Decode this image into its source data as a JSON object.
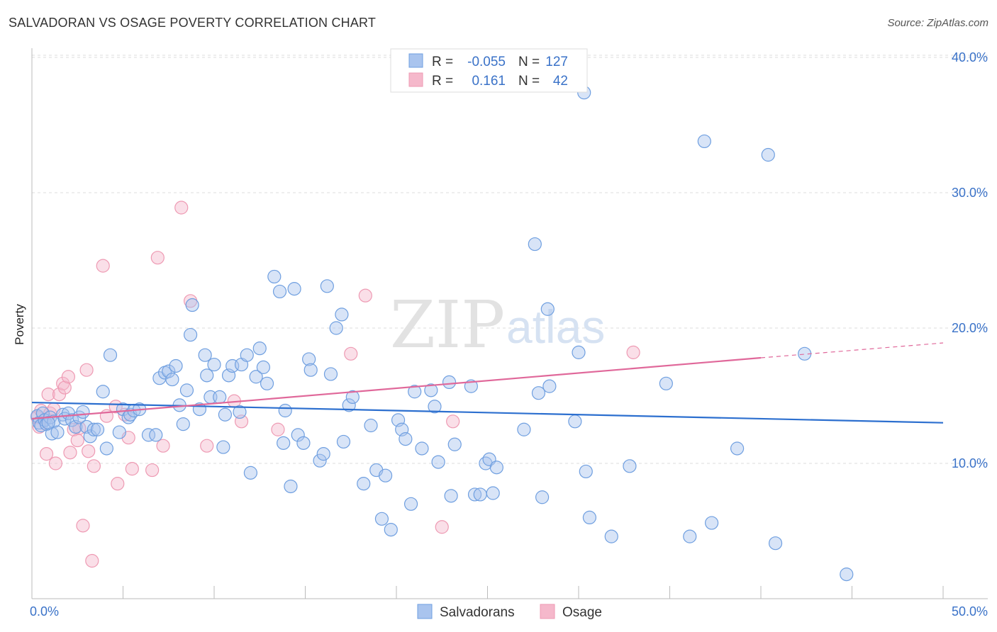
{
  "title": "SALVADORAN VS OSAGE POVERTY CORRELATION CHART",
  "source": "Source: ZipAtlas.com",
  "watermark": {
    "zip": "ZIP",
    "atlas": "atlas"
  },
  "legend_box": {
    "rows": [
      {
        "r_label": "R =",
        "r_value": "-0.055",
        "n_label": "N =",
        "n_value": "127",
        "color": "#a9c4ee"
      },
      {
        "r_label": "R =",
        "r_value": "0.161",
        "n_label": "N =",
        "n_value": "42",
        "color": "#f5b8cb"
      }
    ]
  },
  "bottom_legend": [
    {
      "label": "Salvadorans",
      "color": "#a9c4ee"
    },
    {
      "label": "Osage",
      "color": "#f5b8cb"
    }
  ],
  "chart_data": {
    "type": "scatter",
    "title": "SALVADORAN VS OSAGE POVERTY CORRELATION CHART",
    "xlabel": "",
    "ylabel": "Poverty",
    "xlim": [
      0,
      50
    ],
    "ylim": [
      0,
      41
    ],
    "x_tick_labels": [
      "0.0%",
      "50.0%"
    ],
    "y_ticks": [
      10,
      20,
      30,
      40
    ],
    "y_tick_labels": [
      "10.0%",
      "20.0%",
      "30.0%",
      "40.0%"
    ],
    "grid": "horizontal dashed",
    "legend": "top-center",
    "series": [
      {
        "name": "Salvadorans",
        "color": "#6f9fe0",
        "fill": "#a9c4ee",
        "trend": {
          "x": [
            0,
            50
          ],
          "y": [
            14.5,
            13.0
          ],
          "color": "#2c6fcf"
        },
        "points": [
          [
            0.3,
            13.5
          ],
          [
            0.4,
            13.0
          ],
          [
            0.5,
            12.8
          ],
          [
            0.6,
            13.7
          ],
          [
            0.7,
            13.2
          ],
          [
            0.8,
            12.9
          ],
          [
            1.0,
            13.4
          ],
          [
            1.1,
            12.2
          ],
          [
            1.2,
            13.1
          ],
          [
            1.4,
            12.3
          ],
          [
            1.7,
            13.6
          ],
          [
            1.8,
            13.3
          ],
          [
            2.0,
            13.7
          ],
          [
            2.2,
            13.2
          ],
          [
            2.4,
            12.7
          ],
          [
            2.6,
            13.4
          ],
          [
            2.8,
            13.8
          ],
          [
            3.0,
            12.7
          ],
          [
            3.2,
            12.0
          ],
          [
            3.4,
            12.5
          ],
          [
            3.6,
            12.5
          ],
          [
            3.9,
            15.3
          ],
          [
            4.1,
            11.1
          ],
          [
            4.3,
            18.0
          ],
          [
            4.8,
            12.3
          ],
          [
            5.0,
            14.0
          ],
          [
            5.3,
            13.4
          ],
          [
            5.4,
            13.6
          ],
          [
            5.6,
            13.9
          ],
          [
            5.9,
            14.0
          ],
          [
            6.4,
            12.1
          ],
          [
            6.8,
            12.1
          ],
          [
            7.0,
            16.3
          ],
          [
            7.3,
            16.7
          ],
          [
            7.5,
            16.8
          ],
          [
            7.7,
            16.2
          ],
          [
            7.9,
            17.2
          ],
          [
            8.1,
            14.3
          ],
          [
            8.3,
            12.9
          ],
          [
            8.5,
            15.4
          ],
          [
            8.7,
            19.5
          ],
          [
            8.8,
            21.7
          ],
          [
            9.2,
            14.0
          ],
          [
            9.5,
            18.0
          ],
          [
            9.6,
            16.5
          ],
          [
            9.8,
            14.9
          ],
          [
            10.0,
            17.3
          ],
          [
            10.3,
            14.9
          ],
          [
            10.5,
            11.2
          ],
          [
            10.6,
            13.6
          ],
          [
            10.8,
            16.5
          ],
          [
            11.0,
            17.2
          ],
          [
            11.4,
            13.8
          ],
          [
            11.5,
            17.3
          ],
          [
            11.8,
            18.0
          ],
          [
            12.0,
            9.3
          ],
          [
            12.3,
            16.4
          ],
          [
            12.5,
            18.5
          ],
          [
            12.7,
            17.1
          ],
          [
            12.9,
            15.9
          ],
          [
            13.3,
            23.8
          ],
          [
            13.6,
            22.7
          ],
          [
            13.8,
            11.5
          ],
          [
            13.9,
            13.9
          ],
          [
            14.2,
            8.3
          ],
          [
            14.4,
            22.9
          ],
          [
            14.6,
            12.1
          ],
          [
            14.9,
            11.5
          ],
          [
            15.2,
            17.7
          ],
          [
            15.3,
            16.9
          ],
          [
            15.8,
            10.2
          ],
          [
            16.0,
            10.7
          ],
          [
            16.2,
            23.1
          ],
          [
            16.4,
            16.6
          ],
          [
            16.7,
            20.0
          ],
          [
            17.0,
            21.0
          ],
          [
            17.1,
            11.6
          ],
          [
            17.4,
            14.3
          ],
          [
            17.6,
            14.9
          ],
          [
            18.2,
            8.5
          ],
          [
            18.6,
            12.8
          ],
          [
            18.9,
            9.5
          ],
          [
            19.2,
            5.9
          ],
          [
            19.4,
            9.1
          ],
          [
            19.7,
            5.1
          ],
          [
            20.1,
            13.2
          ],
          [
            20.3,
            12.5
          ],
          [
            20.5,
            11.8
          ],
          [
            20.8,
            7.0
          ],
          [
            21.0,
            15.3
          ],
          [
            21.4,
            11.1
          ],
          [
            21.9,
            15.4
          ],
          [
            22.1,
            14.2
          ],
          [
            22.3,
            10.1
          ],
          [
            22.9,
            16.0
          ],
          [
            23.0,
            7.6
          ],
          [
            23.2,
            11.4
          ],
          [
            24.1,
            15.7
          ],
          [
            24.3,
            7.7
          ],
          [
            24.6,
            7.7
          ],
          [
            24.9,
            10.0
          ],
          [
            25.1,
            10.3
          ],
          [
            25.3,
            7.8
          ],
          [
            25.5,
            9.7
          ],
          [
            27.0,
            12.5
          ],
          [
            27.6,
            26.2
          ],
          [
            27.8,
            15.2
          ],
          [
            28.0,
            7.5
          ],
          [
            28.3,
            21.4
          ],
          [
            28.4,
            15.7
          ],
          [
            29.8,
            13.1
          ],
          [
            30.0,
            18.2
          ],
          [
            30.4,
            9.4
          ],
          [
            30.6,
            6.0
          ],
          [
            31.8,
            4.6
          ],
          [
            32.8,
            9.8
          ],
          [
            34.8,
            15.9
          ],
          [
            36.1,
            4.6
          ],
          [
            36.9,
            33.8
          ],
          [
            37.3,
            5.6
          ],
          [
            38.7,
            11.1
          ],
          [
            40.4,
            32.8
          ],
          [
            40.8,
            4.1
          ],
          [
            42.4,
            18.1
          ],
          [
            44.7,
            1.8
          ],
          [
            30.3,
            37.4
          ],
          [
            0.9,
            13.0
          ]
        ]
      },
      {
        "name": "Osage",
        "color": "#ee9ab3",
        "fill": "#f5b8cb",
        "trend": {
          "x": [
            0,
            40
          ],
          "y": [
            13.3,
            17.8
          ],
          "dash_x": [
            40,
            50
          ],
          "dash_y": [
            17.8,
            18.9
          ],
          "color": "#e0689a"
        },
        "points": [
          [
            0.3,
            13.4
          ],
          [
            0.4,
            12.7
          ],
          [
            0.5,
            13.9
          ],
          [
            0.8,
            10.7
          ],
          [
            0.9,
            15.1
          ],
          [
            1.0,
            13.7
          ],
          [
            1.2,
            14.0
          ],
          [
            1.3,
            10.0
          ],
          [
            1.5,
            15.1
          ],
          [
            1.7,
            15.9
          ],
          [
            1.8,
            15.6
          ],
          [
            2.0,
            16.4
          ],
          [
            2.1,
            10.8
          ],
          [
            2.3,
            12.5
          ],
          [
            2.5,
            11.7
          ],
          [
            2.6,
            12.6
          ],
          [
            2.8,
            5.4
          ],
          [
            3.0,
            16.9
          ],
          [
            3.1,
            10.9
          ],
          [
            3.3,
            2.8
          ],
          [
            3.4,
            9.8
          ],
          [
            3.9,
            24.6
          ],
          [
            4.1,
            13.5
          ],
          [
            4.6,
            14.2
          ],
          [
            4.7,
            8.5
          ],
          [
            5.1,
            13.6
          ],
          [
            5.3,
            11.9
          ],
          [
            5.5,
            9.6
          ],
          [
            6.6,
            9.5
          ],
          [
            6.9,
            25.2
          ],
          [
            7.2,
            11.3
          ],
          [
            8.2,
            28.9
          ],
          [
            8.7,
            22.0
          ],
          [
            9.6,
            11.3
          ],
          [
            11.1,
            14.6
          ],
          [
            11.5,
            13.1
          ],
          [
            13.5,
            12.5
          ],
          [
            17.5,
            18.1
          ],
          [
            18.3,
            22.4
          ],
          [
            22.5,
            5.3
          ],
          [
            23.1,
            13.1
          ],
          [
            33.0,
            18.2
          ]
        ]
      }
    ]
  }
}
